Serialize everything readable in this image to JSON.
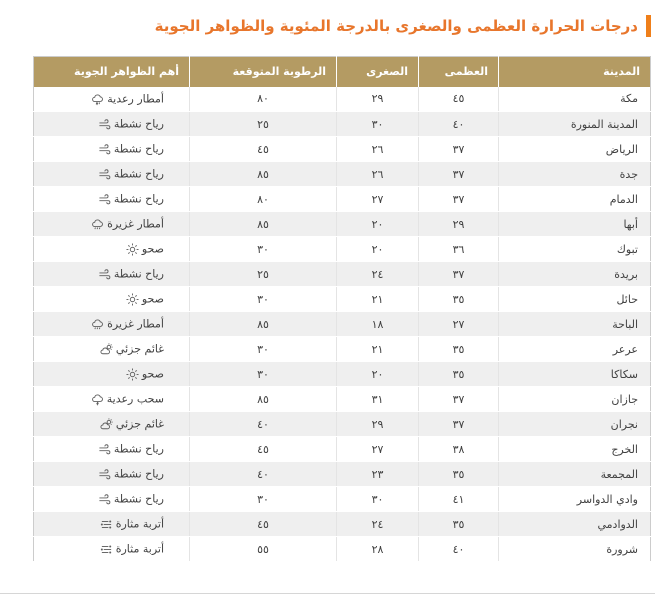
{
  "page": {
    "title": "درجات الحرارة العظمى والصغرى بالدرجة المئوية والظواهر الجوية"
  },
  "colors": {
    "title_text": "#e8762c",
    "accent_bar": "#ef7f1a",
    "header_bg": "#b49b63",
    "header_text": "#ffffff",
    "row_alt_bg": "#efefef",
    "body_text": "#414141",
    "icon_gray": "#5f5f5f"
  },
  "table": {
    "columns": [
      {
        "key": "city",
        "label": "المدينة"
      },
      {
        "key": "max",
        "label": "العظمى"
      },
      {
        "key": "min",
        "label": "الصغرى"
      },
      {
        "key": "humidity",
        "label": "الرطوبة المتوقعة"
      },
      {
        "key": "weather",
        "label": "أهم الظواهر الجوية"
      }
    ],
    "rows": [
      {
        "city": "مكة",
        "max": "٤٥",
        "min": "٢٩",
        "humidity": "٨٠",
        "weather": "أمطار رعدية",
        "icon": "thunder-rain-icon"
      },
      {
        "city": "المدينة المنورة",
        "max": "٤٠",
        "min": "٣٠",
        "humidity": "٢٥",
        "weather": "رياح نشطة",
        "icon": "wind-icon"
      },
      {
        "city": "الرياض",
        "max": "٣٧",
        "min": "٢٦",
        "humidity": "٤٥",
        "weather": "رياح نشطة",
        "icon": "wind-icon"
      },
      {
        "city": "جدة",
        "max": "٣٧",
        "min": "٢٦",
        "humidity": "٨٥",
        "weather": "رياح نشطة",
        "icon": "wind-icon"
      },
      {
        "city": "الدمام",
        "max": "٣٧",
        "min": "٢٧",
        "humidity": "٨٠",
        "weather": "رياح نشطة",
        "icon": "wind-icon"
      },
      {
        "city": "أبها",
        "max": "٢٩",
        "min": "٢٠",
        "humidity": "٨٥",
        "weather": "أمطار غزيرة",
        "icon": "heavy-rain-icon"
      },
      {
        "city": "تبوك",
        "max": "٣٦",
        "min": "٢٠",
        "humidity": "٣٠",
        "weather": "صحو",
        "icon": "sun-icon"
      },
      {
        "city": "بريدة",
        "max": "٣٧",
        "min": "٢٤",
        "humidity": "٢٥",
        "weather": "رياح نشطة",
        "icon": "wind-icon"
      },
      {
        "city": "حائل",
        "max": "٣٥",
        "min": "٢١",
        "humidity": "٣٠",
        "weather": "صحو",
        "icon": "sun-icon"
      },
      {
        "city": "الباحة",
        "max": "٢٧",
        "min": "١٨",
        "humidity": "٨٥",
        "weather": "أمطار غزيرة",
        "icon": "heavy-rain-icon"
      },
      {
        "city": "عرعر",
        "max": "٣٥",
        "min": "٢١",
        "humidity": "٣٠",
        "weather": "غائم جزئي",
        "icon": "partly-cloudy-icon"
      },
      {
        "city": "سكاكا",
        "max": "٣٥",
        "min": "٢٠",
        "humidity": "٣٠",
        "weather": "صحو",
        "icon": "sun-icon"
      },
      {
        "city": "جازان",
        "max": "٣٧",
        "min": "٣١",
        "humidity": "٨٥",
        "weather": "سحب رعدية",
        "icon": "cloud-lightning-icon"
      },
      {
        "city": "نجران",
        "max": "٣٧",
        "min": "٢٩",
        "humidity": "٤٠",
        "weather": "غائم جزئي",
        "icon": "partly-cloudy-icon"
      },
      {
        "city": "الخرج",
        "max": "٣٨",
        "min": "٢٧",
        "humidity": "٤٥",
        "weather": "رياح نشطة",
        "icon": "wind-icon"
      },
      {
        "city": "المجمعة",
        "max": "٣٥",
        "min": "٢٣",
        "humidity": "٤٠",
        "weather": "رياح نشطة",
        "icon": "wind-icon"
      },
      {
        "city": "وادي الدواسر",
        "max": "٤١",
        "min": "٣٠",
        "humidity": "٣٠",
        "weather": "رياح نشطة",
        "icon": "wind-icon"
      },
      {
        "city": "الدوادمي",
        "max": "٣٥",
        "min": "٢٤",
        "humidity": "٤٥",
        "weather": "أتربة مثارة",
        "icon": "dust-icon"
      },
      {
        "city": "شرورة",
        "max": "٤٠",
        "min": "٢٨",
        "humidity": "٥٥",
        "weather": "أتربة مثارة",
        "icon": "dust-icon"
      }
    ]
  }
}
